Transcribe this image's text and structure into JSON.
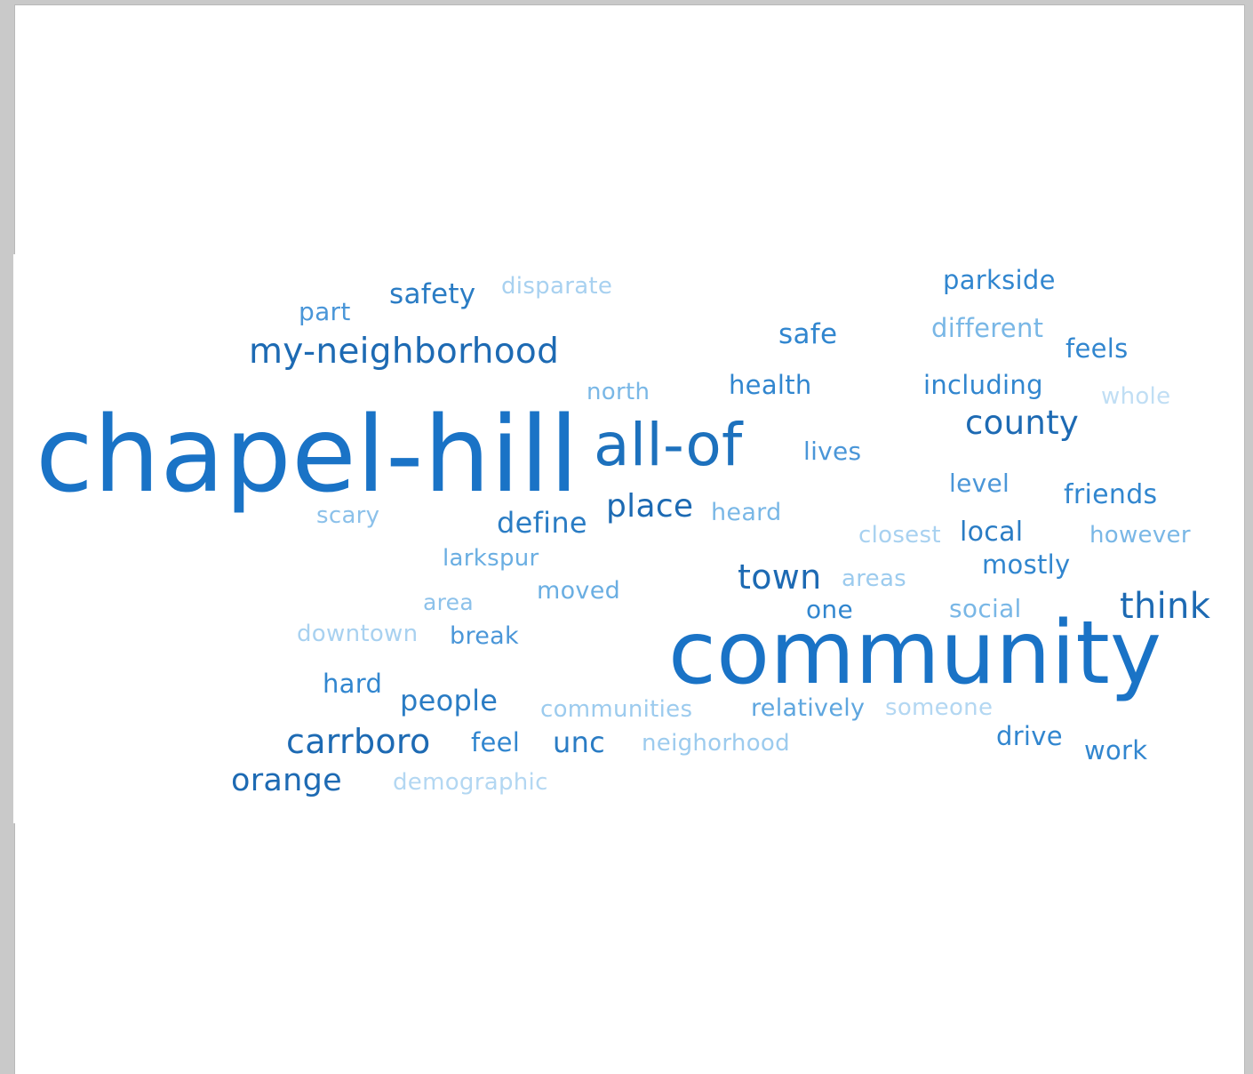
{
  "cloud": {
    "words": [
      {
        "text": "chapel-hill",
        "color": "#1a73c6",
        "weight": 10
      },
      {
        "text": "community",
        "color": "#1a73c6",
        "weight": 10
      },
      {
        "text": "all-of",
        "color": "#1d71bd",
        "weight": 6
      },
      {
        "text": "my-neighborhood",
        "color": "#1d6ab3",
        "weight": 4
      },
      {
        "text": "carrboro",
        "color": "#1d6ab3",
        "weight": 4
      },
      {
        "text": "think",
        "color": "#1d6ab3",
        "weight": 4
      },
      {
        "text": "town",
        "color": "#1d6ab3",
        "weight": 4
      },
      {
        "text": "county",
        "color": "#1d6ab3",
        "weight": 4
      },
      {
        "text": "place",
        "color": "#1d6ab3",
        "weight": 4
      },
      {
        "text": "orange",
        "color": "#1d6ab3",
        "weight": 3
      },
      {
        "text": "define",
        "color": "#2a7cc4",
        "weight": 3
      },
      {
        "text": "unc",
        "color": "#2a7cc4",
        "weight": 3
      },
      {
        "text": "people",
        "color": "#2a7cc4",
        "weight": 3
      },
      {
        "text": "safety",
        "color": "#2a7cc4",
        "weight": 3
      },
      {
        "text": "safe",
        "color": "#3186cf",
        "weight": 3
      },
      {
        "text": "friends",
        "color": "#3186cf",
        "weight": 3
      },
      {
        "text": "parkside",
        "color": "#3186cf",
        "weight": 3
      },
      {
        "text": "feels",
        "color": "#3186cf",
        "weight": 3
      },
      {
        "text": "including",
        "color": "#3186cf",
        "weight": 3
      },
      {
        "text": "health",
        "color": "#3186cf",
        "weight": 3
      },
      {
        "text": "local",
        "color": "#2a7cc4",
        "weight": 3
      },
      {
        "text": "mostly",
        "color": "#3186cf",
        "weight": 3
      },
      {
        "text": "one",
        "color": "#3186cf",
        "weight": 3
      },
      {
        "text": "work",
        "color": "#3186cf",
        "weight": 3
      },
      {
        "text": "drive",
        "color": "#3186cf",
        "weight": 3
      },
      {
        "text": "feel",
        "color": "#3186cf",
        "weight": 3
      },
      {
        "text": "hard",
        "color": "#3186cf",
        "weight": 3
      },
      {
        "text": "part",
        "color": "#4a96d8",
        "weight": 2
      },
      {
        "text": "level",
        "color": "#4a96d8",
        "weight": 2
      },
      {
        "text": "lives",
        "color": "#4a96d8",
        "weight": 2
      },
      {
        "text": "break",
        "color": "#4a96d8",
        "weight": 2
      },
      {
        "text": "relatively",
        "color": "#5ea6df",
        "weight": 2
      },
      {
        "text": "moved",
        "color": "#6aaee2",
        "weight": 2
      },
      {
        "text": "larkspur",
        "color": "#6aaee2",
        "weight": 2
      },
      {
        "text": "north",
        "color": "#79b7e6",
        "weight": 2
      },
      {
        "text": "heard",
        "color": "#79b7e6",
        "weight": 2
      },
      {
        "text": "different",
        "color": "#79b7e6",
        "weight": 2
      },
      {
        "text": "social",
        "color": "#79b7e6",
        "weight": 2
      },
      {
        "text": "however",
        "color": "#79b7e6",
        "weight": 2
      },
      {
        "text": "scary",
        "color": "#8cc1ea",
        "weight": 2
      },
      {
        "text": "area",
        "color": "#8cc1ea",
        "weight": 2
      },
      {
        "text": "areas",
        "color": "#9ccbee",
        "weight": 2
      },
      {
        "text": "communities",
        "color": "#9ccbee",
        "weight": 2
      },
      {
        "text": "neighorhood",
        "color": "#9ccbee",
        "weight": 2
      },
      {
        "text": "disparate",
        "color": "#a8d1f0",
        "weight": 2
      },
      {
        "text": "closest",
        "color": "#a8d1f0",
        "weight": 2
      },
      {
        "text": "downtown",
        "color": "#a8d1f0",
        "weight": 2
      },
      {
        "text": "someone",
        "color": "#b3d7f2",
        "weight": 2
      },
      {
        "text": "demographic",
        "color": "#b3d7f2",
        "weight": 2
      },
      {
        "text": "whole",
        "color": "#c0def4",
        "weight": 2
      }
    ]
  }
}
